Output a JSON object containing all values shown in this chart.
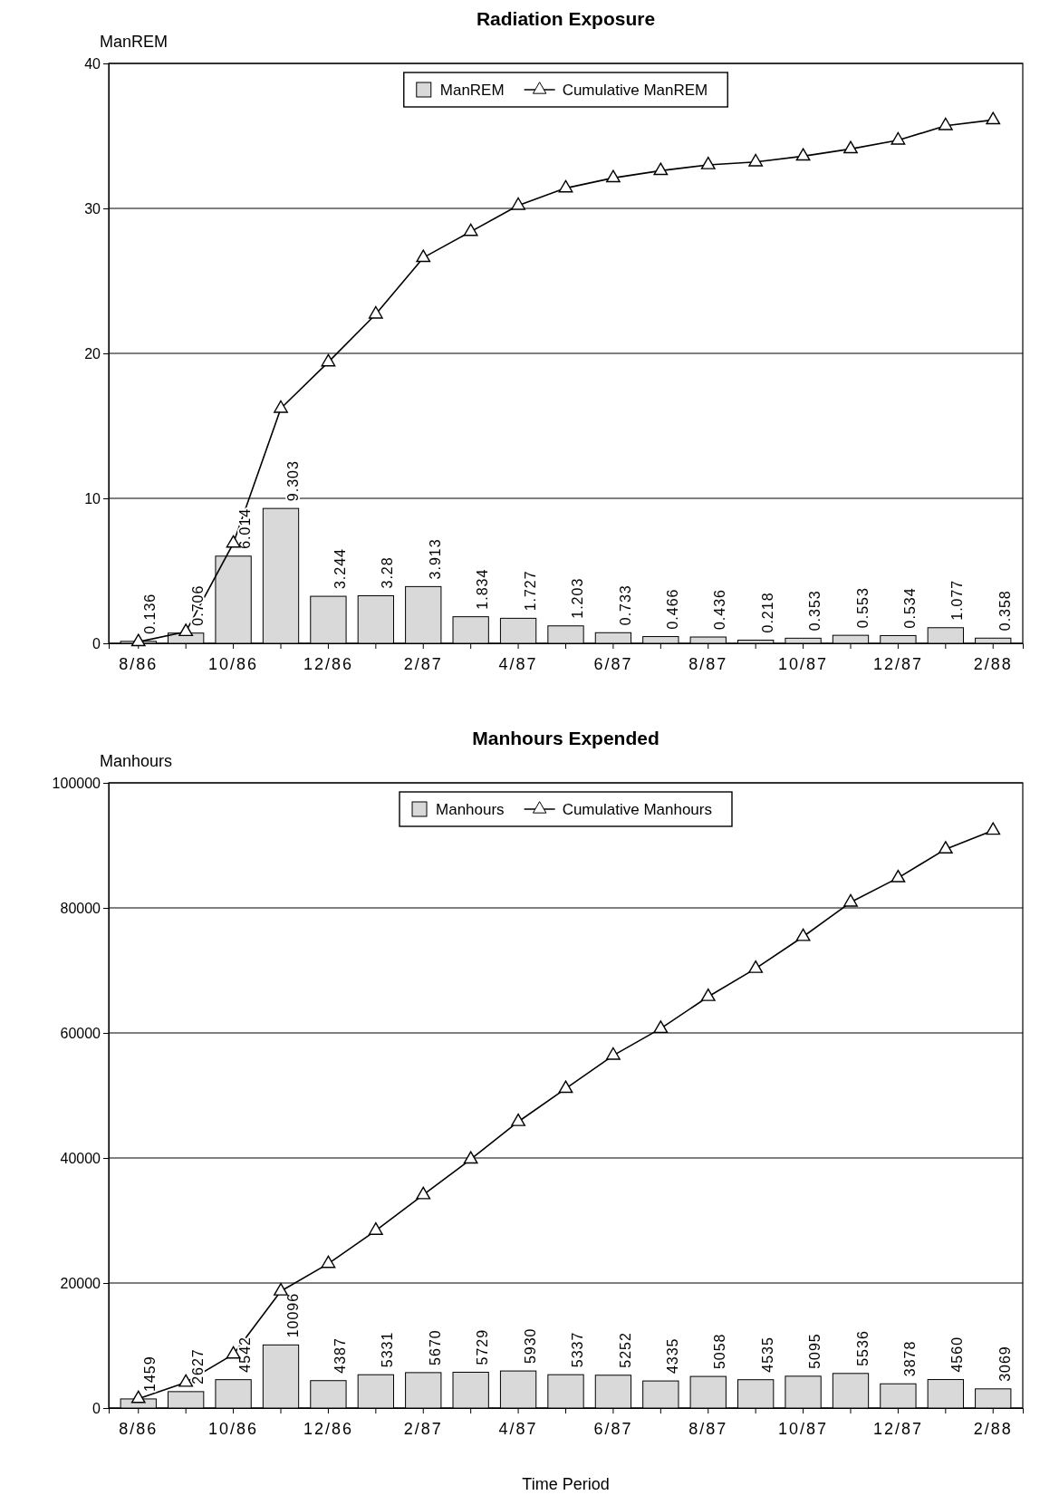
{
  "chart_data": [
    {
      "type": "bar",
      "title": "Radiation Exposure",
      "ylabel": "ManREM",
      "categories": [
        "8/86",
        null,
        "10/86",
        null,
        "12/86",
        null,
        "2/87",
        null,
        "4/87",
        null,
        "6/87",
        null,
        "8/87",
        null,
        "10/87",
        null,
        "12/87",
        null,
        "2/88"
      ],
      "ylim": [
        0,
        40
      ],
      "yticks": [
        0,
        10,
        20,
        30,
        40
      ],
      "grid": "y",
      "legend": "top",
      "series": [
        {
          "name": "ManREM",
          "color": "#d9d9d9",
          "values": [
            0.136,
            0.706,
            6.014,
            9.303,
            3.244,
            3.28,
            3.913,
            1.834,
            1.727,
            1.203,
            0.733,
            0.466,
            0.436,
            0.218,
            0.353,
            0.553,
            0.534,
            1.077,
            0.358
          ],
          "value_labels": [
            "0.136",
            "0.706",
            "6.014",
            "9.303",
            "3.244",
            "3.28",
            "3.913",
            "1.834",
            "1.727",
            "1.203",
            "0.733",
            "0.466",
            "0.436",
            "0.218",
            "0.353",
            "0.553",
            "0.534",
            "1.077",
            "0.358"
          ]
        },
        {
          "name": "Cumulative ManREM",
          "type": "line",
          "color": "#000000",
          "marker": "triangle",
          "line_style": "solid",
          "values": [
            0.1,
            0.8,
            6.9,
            16.2,
            19.4,
            22.7,
            26.6,
            28.4,
            30.2,
            31.4,
            32.1,
            32.6,
            33.0,
            33.2,
            33.6,
            34.1,
            34.7,
            35.7,
            36.1
          ]
        }
      ]
    },
    {
      "type": "bar",
      "title": "Manhours Expended",
      "ylabel": "Manhours",
      "xlabel": "Time Period",
      "categories": [
        "8/86",
        null,
        "10/86",
        null,
        "12/86",
        null,
        "2/87",
        null,
        "4/87",
        null,
        "6/87",
        null,
        "8/87",
        null,
        "10/87",
        null,
        "12/87",
        null,
        "2/88"
      ],
      "ylim": [
        0,
        100000
      ],
      "yticks": [
        0,
        20000,
        40000,
        60000,
        80000,
        100000
      ],
      "grid": "y",
      "legend": "top",
      "series": [
        {
          "name": "Manhours",
          "color": "#d9d9d9",
          "values": [
            1459,
            2627,
            4542,
            10096,
            4387,
            5331,
            5670,
            5729,
            5930,
            5337,
            5252,
            4335,
            5058,
            4535,
            5095,
            5536,
            3878,
            4560,
            3069
          ],
          "value_labels": [
            "1459",
            "2627",
            "4542",
            "10096",
            "4387",
            "5331",
            "5670",
            "5729",
            "5930",
            "5337",
            "5252",
            "4335",
            "5058",
            "4535",
            "5095",
            "5536",
            "3878",
            "4560",
            "3069"
          ]
        },
        {
          "name": "Cumulative Manhours",
          "type": "line",
          "color": "#000000",
          "marker": "triangle",
          "line_style": "solid",
          "values": [
            1500,
            4100,
            8600,
            18700,
            23100,
            28400,
            34100,
            39800,
            45800,
            51100,
            56400,
            60700,
            65800,
            70300,
            75400,
            80900,
            84800,
            89400,
            92400
          ]
        }
      ]
    }
  ]
}
